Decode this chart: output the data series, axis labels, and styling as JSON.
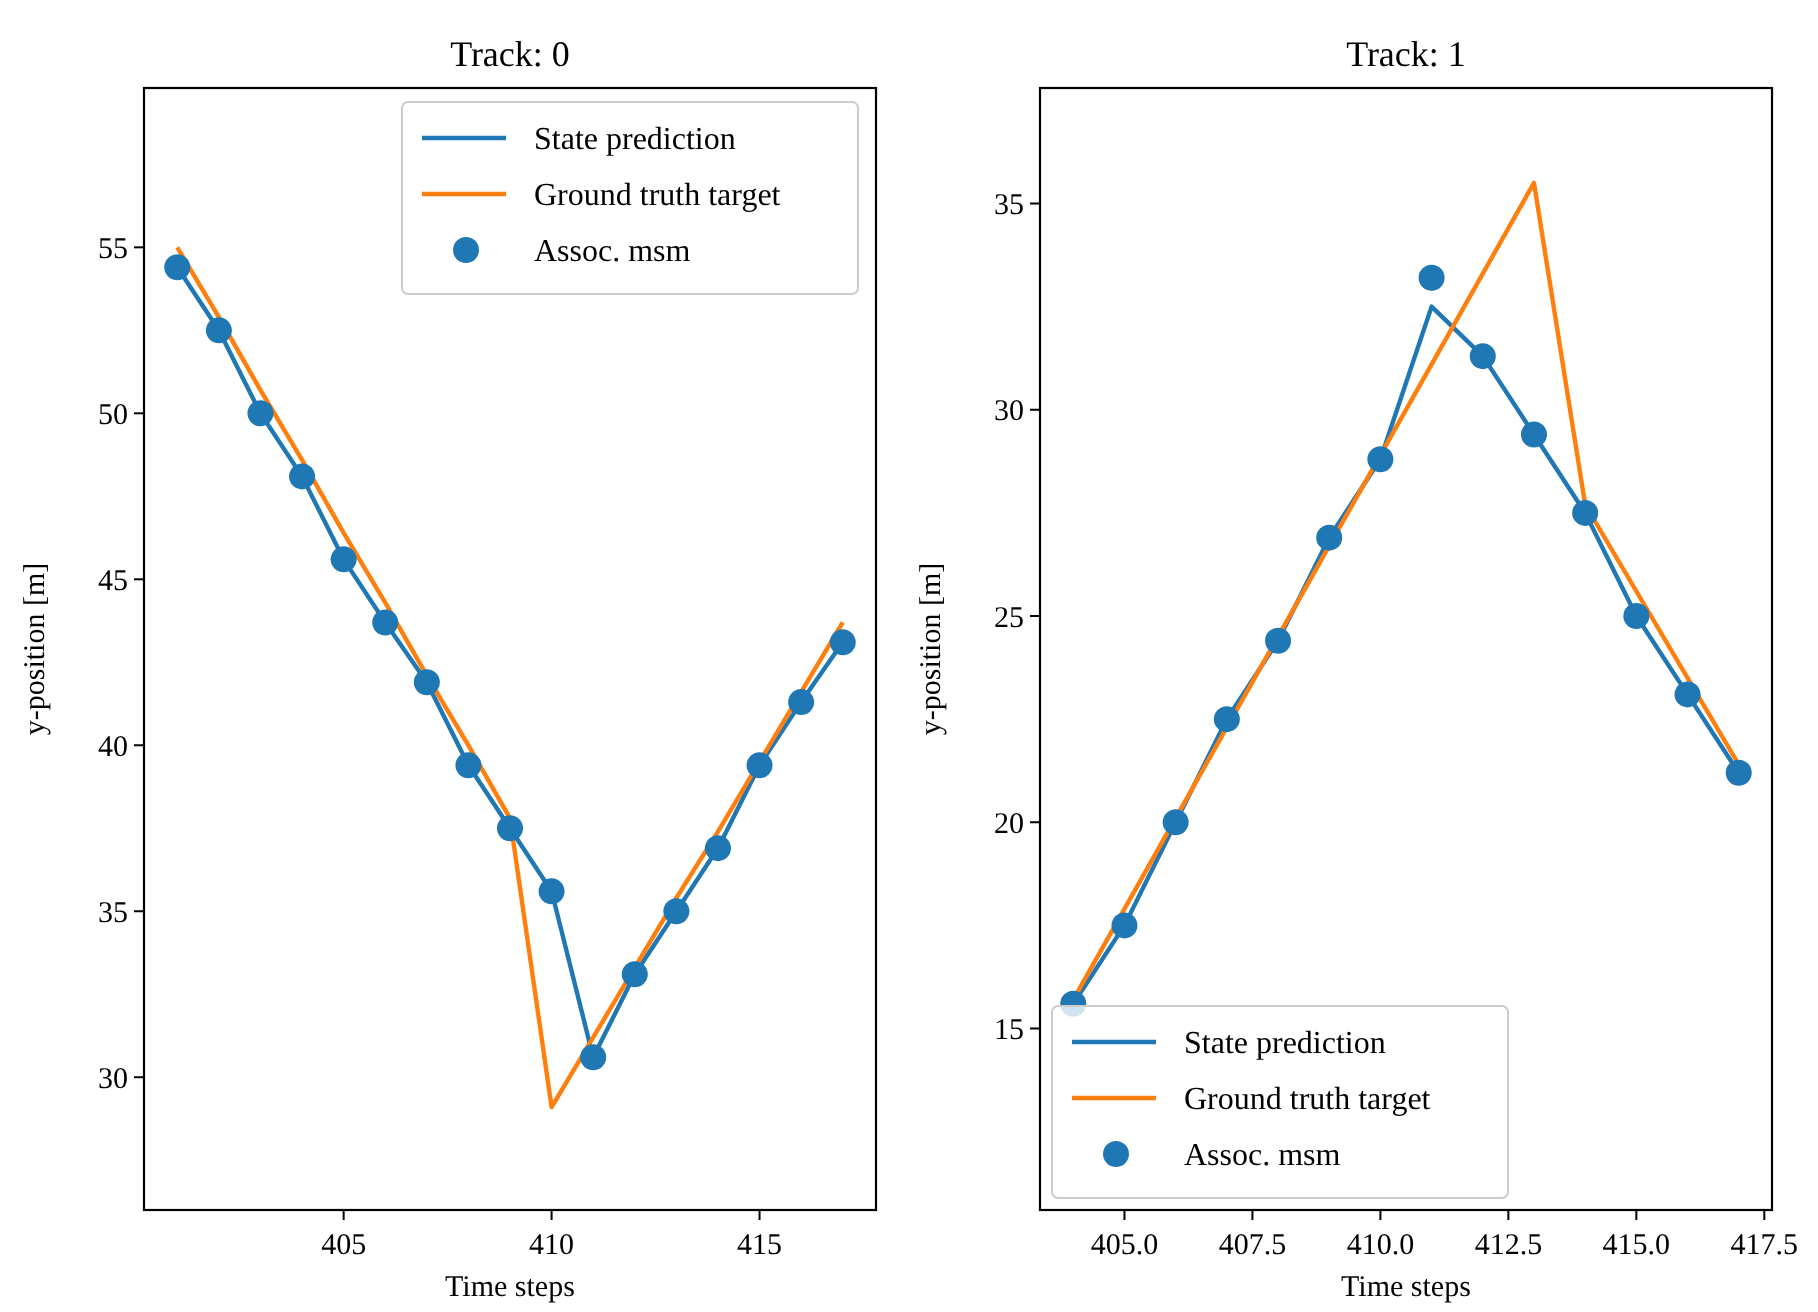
{
  "chart_data": [
    {
      "type": "line",
      "title": "Track: 0",
      "xlabel": "Time steps",
      "ylabel": "y-position [m]",
      "legend": "top right",
      "grid": false,
      "x": [
        401,
        402,
        403,
        404,
        405,
        406,
        407,
        408,
        409,
        410,
        411,
        412,
        413,
        414,
        415,
        416,
        417
      ],
      "xlim": [
        400.2,
        417.8
      ],
      "xticks": [
        405,
        410,
        415
      ],
      "ylim": [
        26,
        59.8
      ],
      "yticks": [
        30,
        35,
        40,
        45,
        50,
        55
      ],
      "series": [
        {
          "name": "State prediction",
          "type": "line",
          "color": "#1f77b4",
          "values": [
            54.4,
            52.5,
            50.0,
            48.1,
            45.6,
            43.7,
            41.9,
            39.4,
            37.5,
            35.6,
            30.6,
            33.1,
            35.0,
            36.9,
            39.4,
            41.3,
            43.1
          ]
        },
        {
          "name": "Ground truth target",
          "type": "line",
          "color": "#ff7f0e",
          "values": [
            55.0,
            52.9,
            50.7,
            48.6,
            46.4,
            44.3,
            42.1,
            40.0,
            37.8,
            29.1,
            31.2,
            33.3,
            35.4,
            37.4,
            39.5,
            41.6,
            43.7
          ]
        },
        {
          "name": "Assoc. msm",
          "type": "scatter",
          "marker": "circle",
          "color": "#1f77b4",
          "values": [
            54.4,
            52.5,
            50.0,
            48.1,
            45.6,
            43.7,
            41.9,
            39.4,
            37.5,
            35.6,
            30.6,
            33.1,
            35.0,
            36.9,
            39.4,
            41.3,
            43.1
          ]
        }
      ]
    },
    {
      "type": "line",
      "title": "Track: 1",
      "xlabel": "Time steps",
      "ylabel": "y-position [m]",
      "legend": "bottom left",
      "grid": false,
      "x": [
        404,
        405,
        406,
        407,
        408,
        409,
        410,
        411,
        412,
        413,
        414,
        415,
        416,
        417
      ],
      "xlim": [
        403.35,
        417.65
      ],
      "xticks": [
        {
          "value": 405,
          "label": "405.0"
        },
        {
          "value": 407.5,
          "label": "407.5"
        },
        {
          "value": 410,
          "label": "410.0"
        },
        {
          "value": 412.5,
          "label": "412.5"
        },
        {
          "value": 415,
          "label": "415.0"
        },
        {
          "value": 417.5,
          "label": "417.5"
        }
      ],
      "ylim": [
        10.6,
        37.8
      ],
      "yticks": [
        15,
        20,
        25,
        30,
        35
      ],
      "series": [
        {
          "name": "State prediction",
          "type": "line",
          "color": "#1f77b4",
          "values": [
            15.6,
            17.5,
            20.0,
            22.5,
            24.4,
            26.9,
            28.8,
            32.5,
            31.3,
            29.4,
            27.5,
            25.0,
            23.1,
            21.2
          ]
        },
        {
          "name": "Ground truth target",
          "type": "line",
          "color": "#ff7f0e",
          "values": [
            15.7,
            17.9,
            20.1,
            22.3,
            24.5,
            26.7,
            28.9,
            31.1,
            33.3,
            35.5,
            27.7,
            25.6,
            23.5,
            21.4
          ]
        },
        {
          "name": "Assoc. msm",
          "type": "scatter",
          "marker": "circle",
          "color": "#1f77b4",
          "values": [
            15.6,
            17.5,
            20.0,
            22.5,
            24.4,
            26.9,
            28.8,
            33.2,
            31.3,
            29.4,
            27.5,
            25.0,
            23.1,
            21.2
          ]
        }
      ]
    }
  ]
}
